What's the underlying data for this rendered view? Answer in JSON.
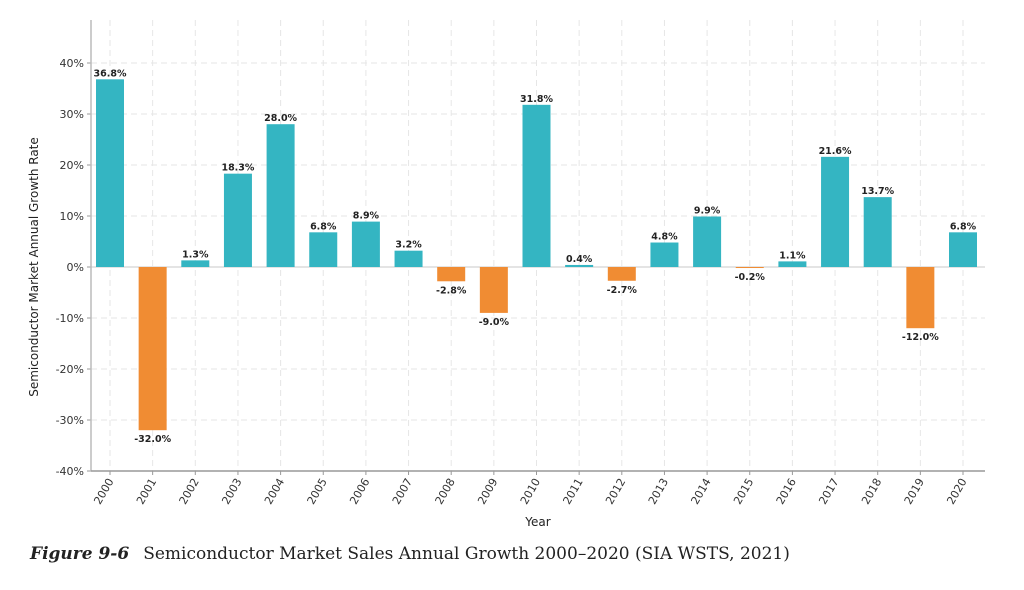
{
  "chart_data": {
    "type": "bar",
    "title": "",
    "xlabel": "Year",
    "ylabel": "Semiconductor Market Annual Growth Rate",
    "ylim": [
      -40,
      40
    ],
    "yticks": [
      "-40%",
      "-30%",
      "-20%",
      "-10%",
      "0%",
      "10%",
      "20%",
      "30%",
      "40%"
    ],
    "ytick_values": [
      -40,
      -30,
      -20,
      -10,
      0,
      10,
      20,
      30,
      40
    ],
    "grid": true,
    "categories": [
      "2000",
      "2001",
      "2002",
      "2003",
      "2004",
      "2005",
      "2006",
      "2007",
      "2008",
      "2009",
      "2010",
      "2011",
      "2012",
      "2013",
      "2014",
      "2015",
      "2016",
      "2017",
      "2018",
      "2019",
      "2020"
    ],
    "values": [
      36.8,
      -32.0,
      1.3,
      18.3,
      28.0,
      6.8,
      8.9,
      3.2,
      -2.8,
      -9.0,
      31.8,
      0.4,
      -2.7,
      4.8,
      9.9,
      -0.2,
      1.1,
      21.6,
      13.7,
      -12.0,
      6.8
    ],
    "data_labels": [
      "36.8%",
      "-32.0%",
      "1.3%",
      "18.3%",
      "28.0%",
      "6.8%",
      "8.9%",
      "3.2%",
      "-2.8%",
      "-9.0%",
      "31.8%",
      "0.4%",
      "-2.7%",
      "4.8%",
      "9.9%",
      "-0.2%",
      "1.1%",
      "21.6%",
      "13.7%",
      "-12.0%",
      "6.8%"
    ],
    "colors": {
      "positive": "#34b5c2",
      "negative": "#f08c33"
    }
  },
  "caption": {
    "figure_label": "Figure 9-6",
    "text": "Semiconductor Market Sales Annual Growth 2000–2020 (SIA WSTS, 2021)"
  }
}
